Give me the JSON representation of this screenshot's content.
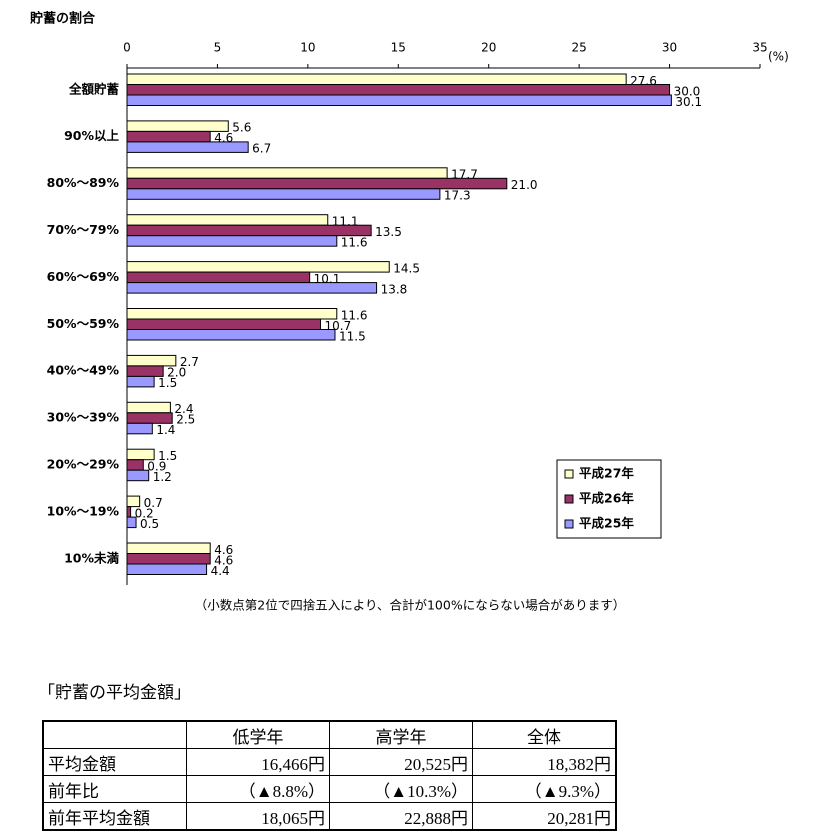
{
  "chart_data": {
    "type": "hbar",
    "title": "貯蓄の割合",
    "xlabel": "(%)",
    "categories": [
      "全額貯蓄",
      "90%以上",
      "80%～89%",
      "70%～79%",
      "60%～69%",
      "50%～59%",
      "40%～49%",
      "30%～39%",
      "20%～29%",
      "10%～19%",
      "10%未満"
    ],
    "series": [
      {
        "name": "平成27年",
        "color": "#ffffcc",
        "values": [
          27.6,
          5.6,
          17.7,
          11.1,
          14.5,
          11.6,
          2.7,
          2.4,
          1.5,
          0.7,
          4.6
        ],
        "value_labels": [
          "27.6",
          "5.6",
          "17.7",
          "11.1",
          "14.5",
          "11.6",
          "2.7",
          "2.4",
          "1.5",
          "0.7",
          "4.6"
        ]
      },
      {
        "name": "平成26年",
        "color": "#993366",
        "values": [
          30.0,
          4.6,
          21.0,
          13.5,
          10.1,
          10.7,
          2.0,
          2.5,
          0.9,
          0.2,
          4.6
        ],
        "value_labels": [
          "30.0",
          "4.6",
          "21.0",
          "13.5",
          "10.1",
          "10.7",
          "2.0",
          "2.5",
          "0.9",
          "0.2",
          "4.6"
        ]
      },
      {
        "name": "平成25年",
        "color": "#9999ff",
        "values": [
          30.1,
          6.7,
          17.3,
          11.6,
          13.8,
          11.5,
          1.5,
          1.4,
          1.2,
          0.5,
          4.4
        ],
        "value_labels": [
          "30.1",
          "6.7",
          "17.3",
          "11.6",
          "13.8",
          "11.5",
          "1.5",
          "1.4",
          "1.2",
          "0.5",
          "4.4"
        ]
      }
    ],
    "xlim": [
      0,
      35
    ],
    "xticks": [
      0,
      5,
      10,
      15,
      20,
      25,
      30,
      35
    ],
    "legend_position": "lower right",
    "note": "（小数点第2位で四捨五入により、合計が100%にならない場合があります）"
  },
  "table": {
    "title": "「貯蓄の平均金額」",
    "columns": [
      "低学年",
      "高学年",
      "全体"
    ],
    "rows": [
      [
        "平均金額",
        "16,466円",
        "20,525円",
        "18,382円"
      ],
      [
        "前年比",
        "（▲8.8%）",
        "（▲10.3%）",
        "（▲9.3%）"
      ],
      [
        "前年平均金額",
        "18,065円",
        "22,888円",
        "20,281円"
      ]
    ]
  }
}
